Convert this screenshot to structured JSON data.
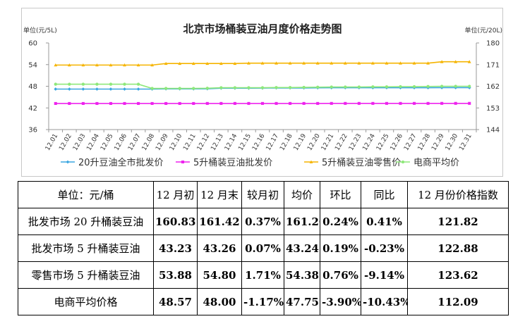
{
  "chart_data": {
    "type": "line",
    "title": "北京市场桶装豆油月度价格走势图",
    "y_left_unit": "单位(元/5L)",
    "y_right_unit": "单位(元/20L)",
    "y_left_lim": [
      36,
      60
    ],
    "y_left_ticks": [
      "60",
      "54",
      "48",
      "42",
      "36"
    ],
    "y_right_lim": [
      144,
      180
    ],
    "y_right_ticks": [
      "180",
      "171",
      "162",
      "153",
      "144"
    ],
    "x": [
      "12.01",
      "12.02",
      "12.03",
      "12.04",
      "12.05",
      "12.06",
      "12.07",
      "12.08",
      "12.09",
      "12.10",
      "12.11",
      "12.12",
      "12.13",
      "12.14",
      "12.15",
      "12.16",
      "12.17",
      "12.18",
      "12.19",
      "12.20",
      "12.21",
      "12.22",
      "12.23",
      "12.24",
      "12.25",
      "12.26",
      "12.27",
      "12.28",
      "12.29",
      "12.30",
      "12.31"
    ],
    "grid": false,
    "legend_position": "bottom",
    "series": [
      {
        "name": "20升豆油全市批发价",
        "axis": "right",
        "color": "#3aa6e0",
        "marker": "diamond",
        "values": [
          160.83,
          160.83,
          160.83,
          160.83,
          160.83,
          160.83,
          160.83,
          160.83,
          160.9,
          160.9,
          160.9,
          160.95,
          161.2,
          161.2,
          161.2,
          161.25,
          161.3,
          161.3,
          161.3,
          161.35,
          161.4,
          161.4,
          161.4,
          161.4,
          161.4,
          161.4,
          161.4,
          161.4,
          161.42,
          161.42,
          161.42
        ]
      },
      {
        "name": "5升桶装豆油批发价",
        "axis": "left",
        "color": "#ee22ee",
        "marker": "square",
        "values": [
          43.23,
          43.23,
          43.23,
          43.23,
          43.23,
          43.23,
          43.23,
          43.23,
          43.23,
          43.23,
          43.23,
          43.24,
          43.24,
          43.24,
          43.24,
          43.24,
          43.24,
          43.24,
          43.24,
          43.24,
          43.25,
          43.25,
          43.25,
          43.25,
          43.25,
          43.25,
          43.25,
          43.25,
          43.26,
          43.26,
          43.26
        ]
      },
      {
        "name": "5升桶装豆油零售价",
        "axis": "left",
        "color": "#f5b400",
        "marker": "triangle",
        "values": [
          53.88,
          53.88,
          53.88,
          53.88,
          53.88,
          53.88,
          53.88,
          53.88,
          54.3,
          54.3,
          54.3,
          54.3,
          54.3,
          54.3,
          54.4,
          54.4,
          54.4,
          54.4,
          54.4,
          54.4,
          54.4,
          54.4,
          54.4,
          54.4,
          54.4,
          54.4,
          54.4,
          54.4,
          54.8,
          54.8,
          54.8
        ]
      },
      {
        "name": "电商平均价",
        "axis": "left",
        "color": "#8ee87a",
        "marker": "circle",
        "values": [
          48.57,
          48.57,
          48.57,
          48.57,
          48.57,
          48.57,
          48.57,
          47.4,
          47.4,
          47.4,
          47.4,
          47.45,
          47.6,
          47.6,
          47.6,
          47.6,
          47.65,
          47.65,
          47.7,
          47.75,
          47.8,
          47.8,
          47.8,
          47.85,
          47.85,
          47.9,
          47.9,
          47.95,
          48.0,
          48.0,
          48.0
        ]
      }
    ]
  },
  "table": {
    "headers": [
      "单位：元/桶",
      "12 月初",
      "12 月末",
      "较月初",
      "均价",
      "环比",
      "同比",
      "12 月份价格指数"
    ],
    "rows": [
      [
        "批发市场 20 升桶装豆油",
        "160.83",
        "161.42",
        "0.37%",
        "161.20",
        "0.24%",
        "0.41%",
        "121.82"
      ],
      [
        "批发市场 5 升桶装豆油",
        "43.23",
        "43.26",
        "0.07%",
        "43.24",
        "0.19%",
        "-0.23%",
        "122.88"
      ],
      [
        "零售市场 5 升桶装豆油",
        "53.88",
        "54.80",
        "1.71%",
        "54.38",
        "0.76%",
        "-9.14%",
        "123.62"
      ],
      [
        "电商平均价格",
        "48.57",
        "48.00",
        "-1.17%",
        "47.75",
        "-3.90%",
        "-10.43%",
        "112.09"
      ]
    ]
  }
}
